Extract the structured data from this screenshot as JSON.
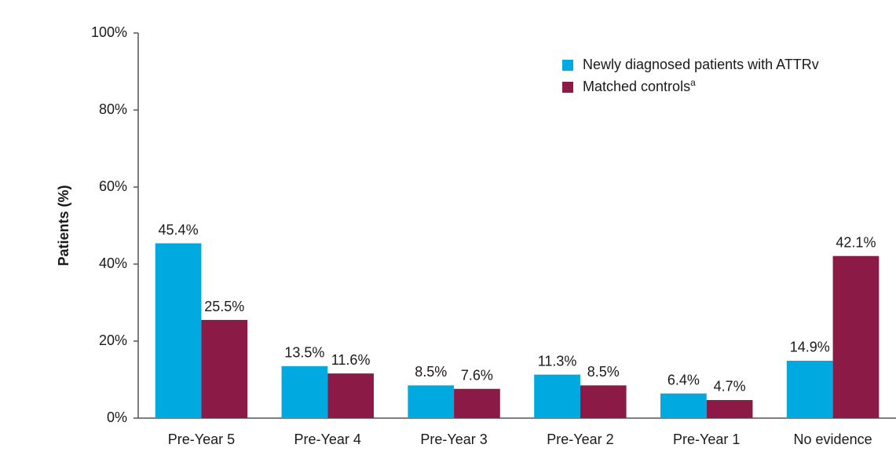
{
  "chart_data": {
    "type": "bar",
    "y_label": "Patients (%)",
    "categories": [
      "Pre-Year 5",
      "Pre-Year 4",
      "Pre-Year 3",
      "Pre-Year 2",
      "Pre-Year 1",
      "No evidence"
    ],
    "series": [
      {
        "name": "Newly diagnosed patients with ATTRv",
        "color": "#00a9e0",
        "values": [
          45.4,
          13.5,
          8.5,
          11.3,
          6.4,
          14.9
        ],
        "value_labels": [
          "45.4%",
          "13.5%",
          "8.5%",
          "11.3%",
          "6.4%",
          "14.9%"
        ]
      },
      {
        "name": "Matched controls",
        "name_superscript": "a",
        "color": "#8c1a47",
        "values": [
          25.5,
          11.6,
          7.6,
          8.5,
          4.7,
          42.1
        ],
        "value_labels": [
          "25.5%",
          "11.6%",
          "7.6%",
          "8.5%",
          "4.7%",
          "42.1%"
        ]
      }
    ],
    "ylim": [
      0,
      100
    ],
    "yticks": [
      {
        "value": 0,
        "label": "0%"
      },
      {
        "value": 20,
        "label": "20%"
      },
      {
        "value": 40,
        "label": "40%"
      },
      {
        "value": 60,
        "label": "60%"
      },
      {
        "value": 80,
        "label": "80%"
      },
      {
        "value": 100,
        "label": "100%"
      }
    ],
    "grid": false,
    "legend": "top-right"
  }
}
